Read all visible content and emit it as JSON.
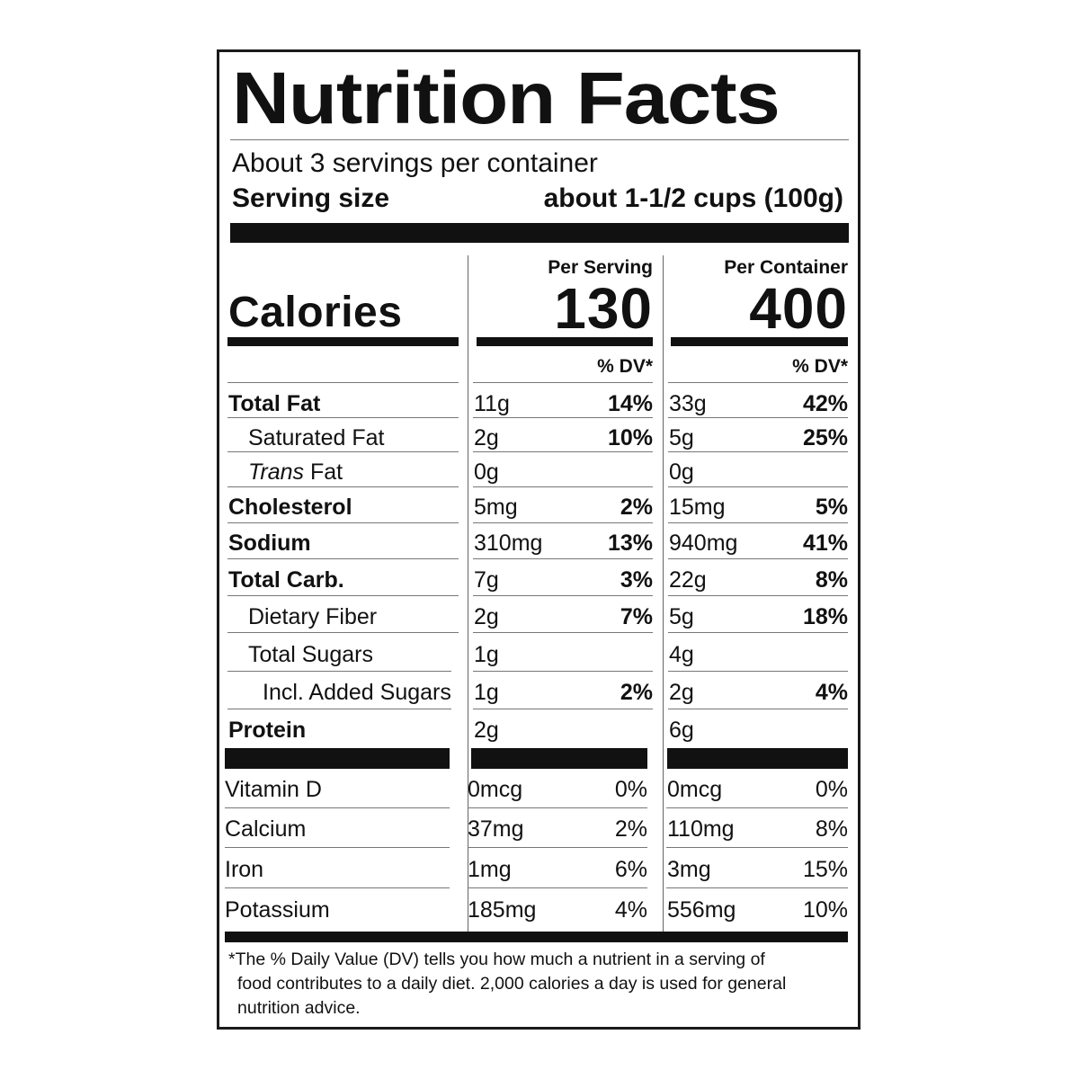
{
  "title": "Nutrition Facts",
  "servings_per_container": "About 3 servings per container",
  "serving_size": {
    "label": "Serving size",
    "value": "about 1-1/2 cups (100g)"
  },
  "columns": {
    "per_serving": {
      "header": "Per Serving",
      "calories": "130",
      "dv_header": "% DV*"
    },
    "per_container": {
      "header": "Per Container",
      "calories": "400",
      "dv_header": "% DV*"
    }
  },
  "calories_label": "Calories",
  "nutrients": [
    {
      "name": "Total Fat",
      "emphasis": "bold",
      "indent": 0,
      "serving_amount": "11g",
      "serving_dv": "14%",
      "container_amount": "33g",
      "container_dv": "42%"
    },
    {
      "name": "Saturated Fat",
      "emphasis": "normal",
      "indent": 1,
      "serving_amount": "2g",
      "serving_dv": "10%",
      "container_amount": "5g",
      "container_dv": "25%"
    },
    {
      "name_italic": "Trans",
      "name": " Fat",
      "emphasis": "normal",
      "indent": 1,
      "serving_amount": "0g",
      "serving_dv": "",
      "container_amount": "0g",
      "container_dv": ""
    },
    {
      "name": "Cholesterol",
      "emphasis": "bold",
      "indent": 0,
      "serving_amount": "5mg",
      "serving_dv": "2%",
      "container_amount": "15mg",
      "container_dv": "5%"
    },
    {
      "name": "Sodium",
      "emphasis": "bold",
      "indent": 0,
      "serving_amount": "310mg",
      "serving_dv": "13%",
      "container_amount": "940mg",
      "container_dv": "41%"
    },
    {
      "name": "Total Carb.",
      "emphasis": "bold",
      "indent": 0,
      "serving_amount": "7g",
      "serving_dv": "3%",
      "container_amount": "22g",
      "container_dv": "8%"
    },
    {
      "name": "Dietary Fiber",
      "emphasis": "normal",
      "indent": 1,
      "serving_amount": "2g",
      "serving_dv": "7%",
      "container_amount": "5g",
      "container_dv": "18%"
    },
    {
      "name": "Total Sugars",
      "emphasis": "normal",
      "indent": 1,
      "serving_amount": "1g",
      "serving_dv": "",
      "container_amount": "4g",
      "container_dv": ""
    },
    {
      "name": "Incl. Added Sugars",
      "emphasis": "normal",
      "indent": 2,
      "serving_amount": "1g",
      "serving_dv": "2%",
      "container_amount": "2g",
      "container_dv": "4%"
    },
    {
      "name": "Protein",
      "emphasis": "bold",
      "indent": 0,
      "serving_amount": "2g",
      "serving_dv": "",
      "container_amount": "6g",
      "container_dv": ""
    }
  ],
  "vitamins": [
    {
      "name": "Vitamin D",
      "serving_amount": "0mcg",
      "serving_dv": "0%",
      "container_amount": "0mcg",
      "container_dv": "0%"
    },
    {
      "name": "Calcium",
      "serving_amount": "37mg",
      "serving_dv": "2%",
      "container_amount": "110mg",
      "container_dv": "8%"
    },
    {
      "name": "Iron",
      "serving_amount": "1mg",
      "serving_dv": "6%",
      "container_amount": "3mg",
      "container_dv": "15%"
    },
    {
      "name": "Potassium",
      "serving_amount": "185mg",
      "serving_dv": "4%",
      "container_amount": "556mg",
      "container_dv": "10%"
    }
  ],
  "footnote": {
    "line1": "*The % Daily Value (DV) tells you how much a nutrient in a serving of",
    "line2": "food contributes to a daily diet. 2,000 calories a day is used for general",
    "line3": "nutrition advice."
  }
}
